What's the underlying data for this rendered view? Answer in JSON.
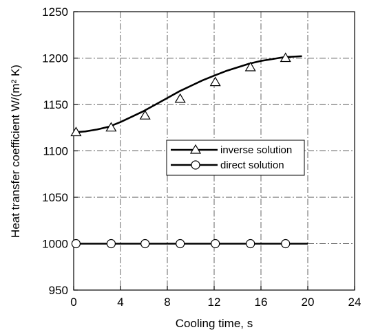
{
  "chart_data": {
    "type": "line",
    "xlabel": "Cooling time, s",
    "ylabel": "Heat transfer coefficient  W/(m² K)",
    "xlim": [
      0,
      24
    ],
    "ylim": [
      950,
      1250
    ],
    "xticks": [
      0,
      4,
      8,
      12,
      16,
      20,
      24
    ],
    "yticks": [
      950,
      1000,
      1050,
      1100,
      1150,
      1200,
      1250
    ],
    "grid": true,
    "legend_position": "center-right",
    "series": [
      {
        "name": "inverse solution",
        "marker": "triangle",
        "line_x": [
          0,
          1,
          2,
          3,
          4,
          5,
          6,
          7,
          8,
          9,
          10,
          11,
          12,
          13,
          14,
          15,
          16,
          17,
          18,
          19.5
        ],
        "line_y": [
          1120,
          1121,
          1123,
          1126,
          1131,
          1137,
          1143,
          1150,
          1157,
          1164,
          1170,
          1176,
          1181,
          1186,
          1190,
          1194,
          1197,
          1199,
          1201,
          1202
        ],
        "marker_x": [
          0.2,
          3.2,
          6.1,
          9.1,
          12.1,
          15.1,
          18.1
        ],
        "marker_y": [
          1120,
          1125,
          1138,
          1156,
          1174,
          1190,
          1200
        ]
      },
      {
        "name": "direct solution",
        "marker": "circle",
        "line_x": [
          0,
          20
        ],
        "line_y": [
          1000,
          1000
        ],
        "marker_x": [
          0.2,
          3.2,
          6.1,
          9.1,
          12.1,
          15.1,
          18.1
        ],
        "marker_y": [
          1000,
          1000,
          1000,
          1000,
          1000,
          1000,
          1000
        ]
      }
    ]
  }
}
